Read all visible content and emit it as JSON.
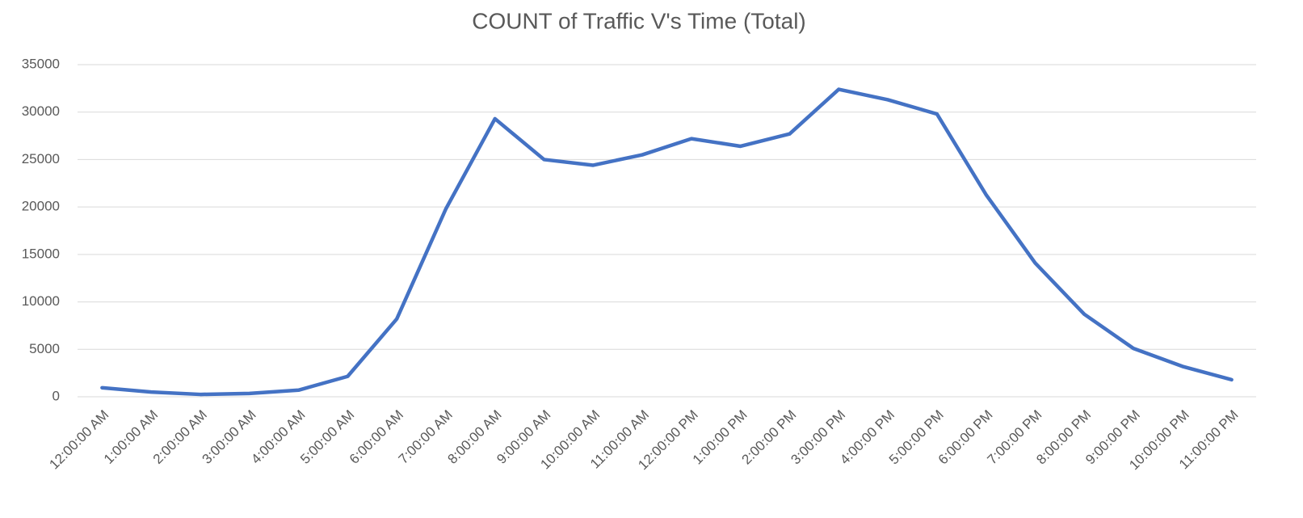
{
  "chart_data": {
    "type": "line",
    "title": "COUNT of Traffic V's Time (Total)",
    "categories": [
      "12:00:00 AM",
      "1:00:00 AM",
      "2:00:00 AM",
      "3:00:00 AM",
      "4:00:00 AM",
      "5:00:00 AM",
      "6:00:00 AM",
      "7:00:00 AM",
      "8:00:00 AM",
      "9:00:00 AM",
      "10:00:00 AM",
      "11:00:00 AM",
      "12:00:00 PM",
      "1:00:00 PM",
      "2:00:00 PM",
      "3:00:00 PM",
      "4:00:00 PM",
      "5:00:00 PM",
      "6:00:00 PM",
      "7:00:00 PM",
      "8:00:00 PM",
      "9:00:00 PM",
      "10:00:00 PM",
      "11:00:00 PM"
    ],
    "values": [
      950,
      500,
      250,
      350,
      700,
      2150,
      8200,
      19800,
      29300,
      25000,
      24400,
      25500,
      27200,
      26400,
      27700,
      32400,
      31300,
      29800,
      21300,
      14100,
      8700,
      5100,
      3200,
      1800
    ],
    "color": "#4472c4",
    "ylim": [
      0,
      35000
    ],
    "yticks": [
      0,
      5000,
      10000,
      15000,
      20000,
      25000,
      30000,
      35000
    ],
    "grid": true
  }
}
